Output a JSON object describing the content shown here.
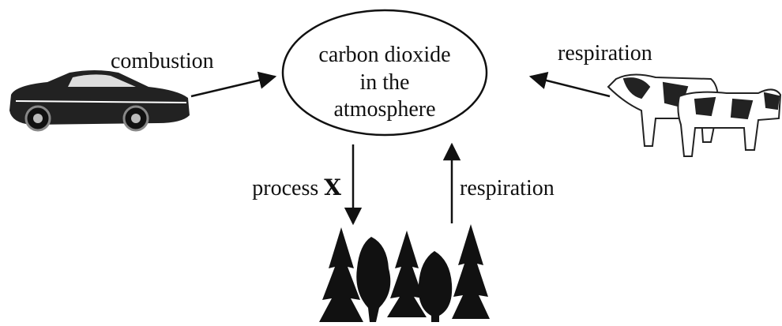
{
  "center": {
    "lines": [
      "carbon dioxide",
      "in the",
      "atmosphere"
    ]
  },
  "arrows": {
    "combustion": "combustion",
    "respiration_animals": "respiration",
    "process": {
      "text": "process",
      "emphasis": "X"
    },
    "respiration_plants": "respiration"
  }
}
